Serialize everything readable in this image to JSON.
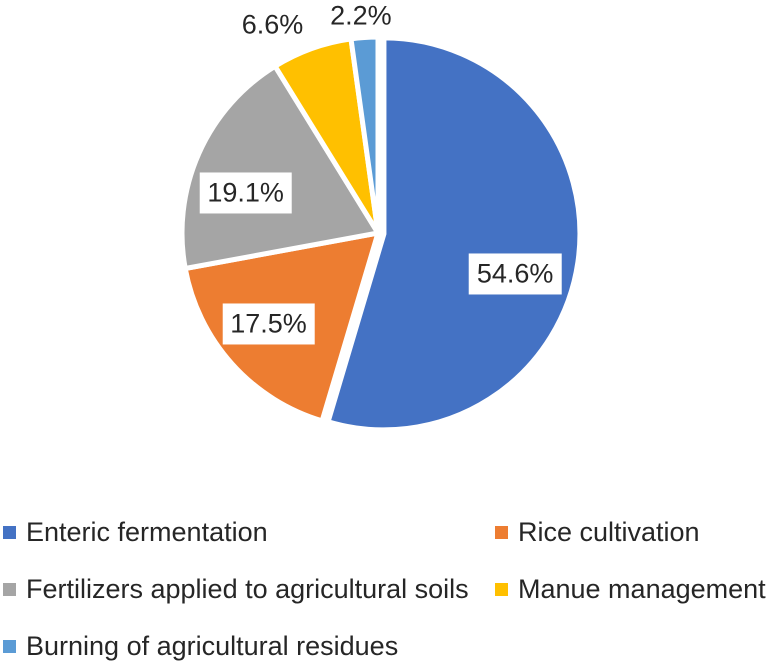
{
  "chart_data": {
    "type": "pie",
    "title": "",
    "unit": "%",
    "background_color": "#FFFFFF",
    "slice_gap_color": "#FFFFFF",
    "start_angle_deg": 0,
    "direction": "clockwise",
    "legend_position": "bottom",
    "legend_columns": 2,
    "slices": [
      {
        "label": "Enteric fermentation",
        "value": 54.6,
        "display": "54.6%",
        "color": "#4472C4",
        "exploded": true,
        "label_placement": "inside",
        "label_angle_deg": 107,
        "label_radius_factor": 0.7
      },
      {
        "label": "Rice cultivation",
        "value": 17.5,
        "display": "17.5%",
        "color": "#ED7D31",
        "exploded": false,
        "label_placement": "inside",
        "label_angle_deg": 230.4,
        "label_radius_factor": 0.725
      },
      {
        "label": "Fertilizers applied to agricultural soils",
        "value": 19.1,
        "display": "19.1%",
        "color": "#A5A5A5",
        "exploded": false,
        "label_placement": "inside",
        "label_angle_deg": 286.7,
        "label_radius_factor": 0.705
      },
      {
        "label": "Manue management",
        "value": 6.6,
        "display": "6.6%",
        "color": "#FFC000",
        "exploded": false,
        "label_placement": "outside",
        "label_angle_deg": 333.1,
        "label_radius_factor": 1.19
      },
      {
        "label": "Burning of agricultural residues",
        "value": 2.2,
        "display": "2.2%",
        "color": "#5B9BD5",
        "exploded": false,
        "label_placement": "outside",
        "label_angle_deg": 355.5,
        "label_radius_factor": 1.11
      }
    ]
  }
}
